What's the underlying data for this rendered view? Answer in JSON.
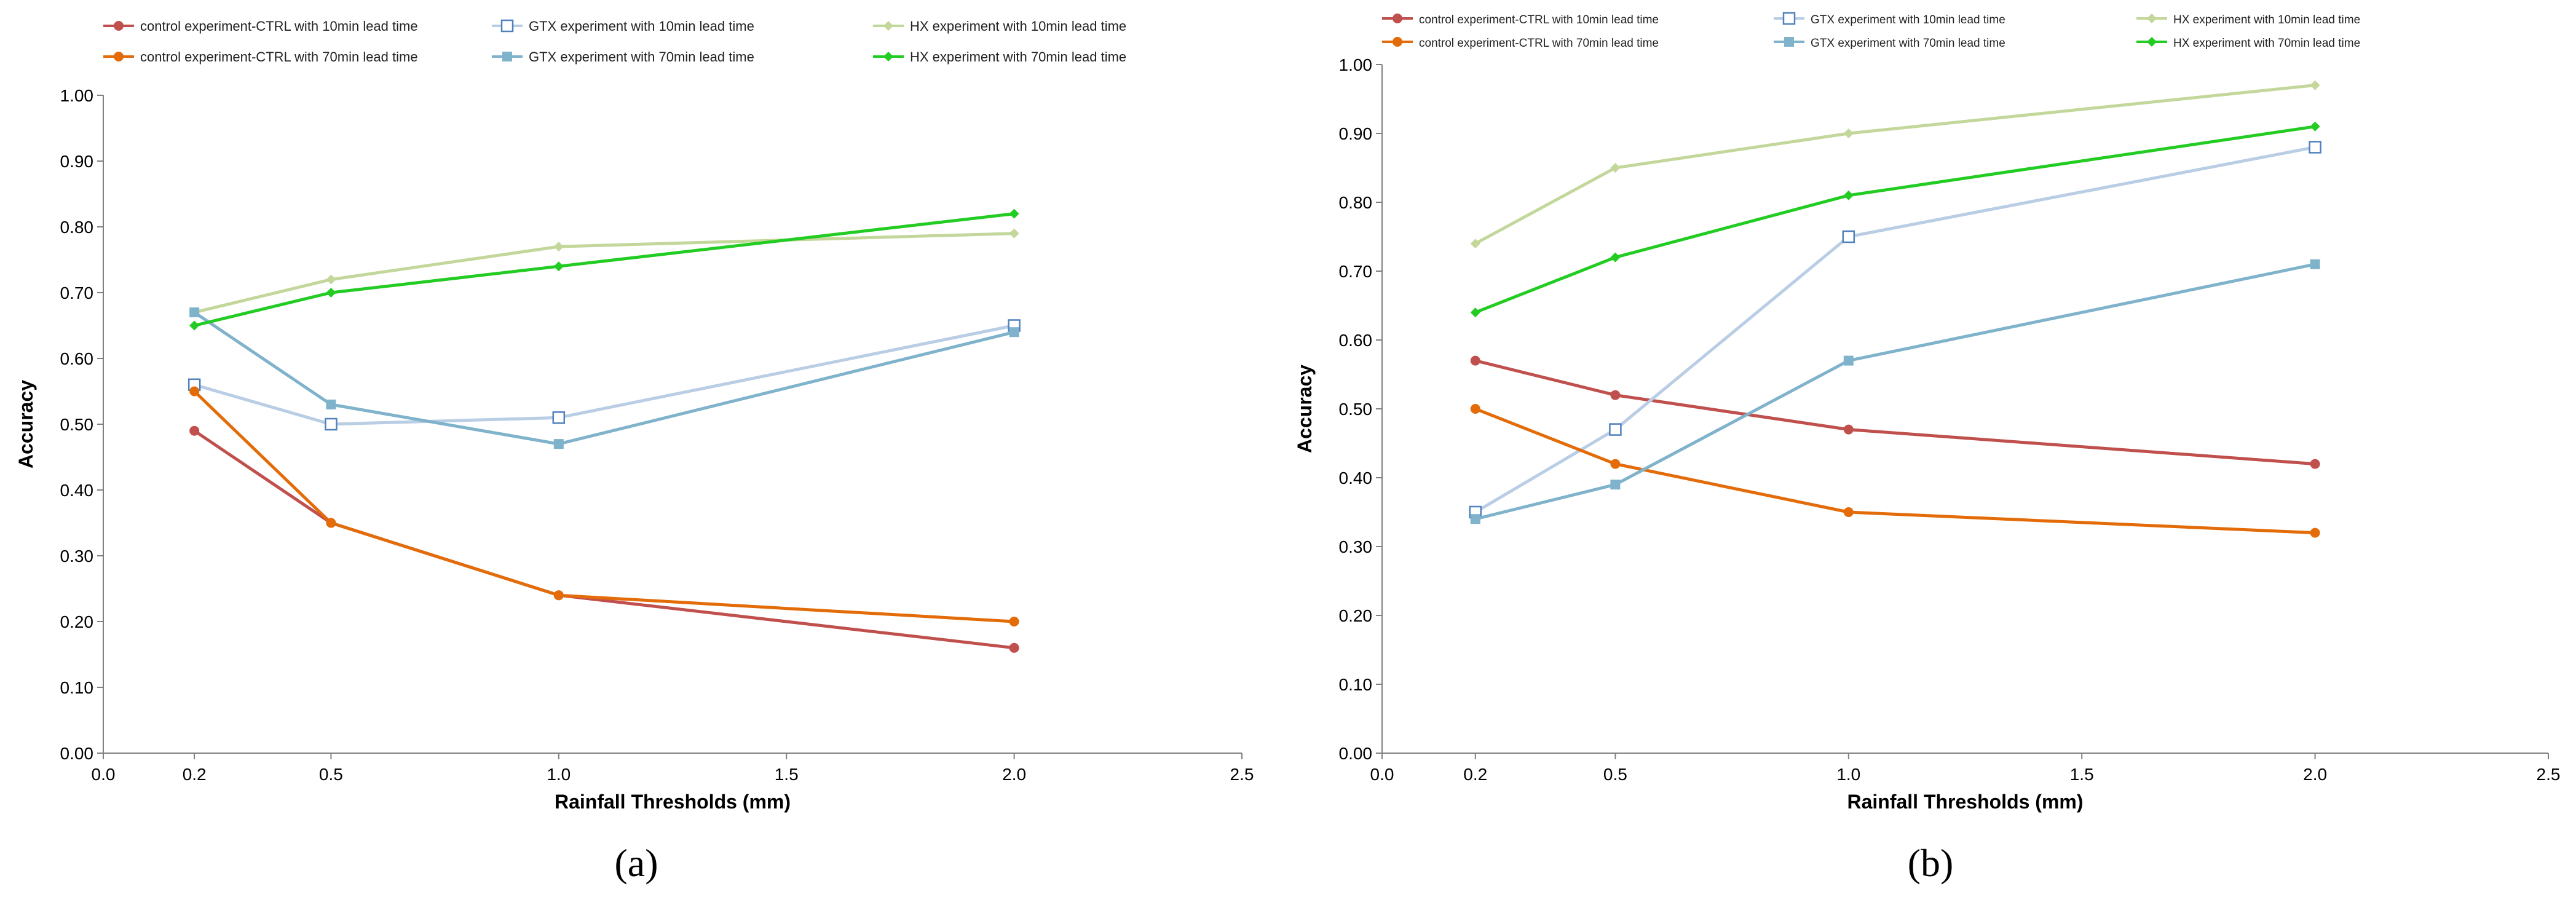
{
  "chart_data": [
    {
      "type": "line",
      "panel": "(a)",
      "xlabel": "Rainfall Thresholds (mm)",
      "ylabel": "Accuracy",
      "xlim": [
        0,
        2.5
      ],
      "ylim": [
        0,
        1.0
      ],
      "x_ticks": [
        "0.0",
        "0.2",
        "0.5",
        "1.0",
        "1.5",
        "2.0",
        "2.5"
      ],
      "y_ticks": [
        "0.00",
        "0.10",
        "0.20",
        "0.30",
        "0.40",
        "0.50",
        "0.60",
        "0.70",
        "0.80",
        "0.90",
        "1.00"
      ],
      "x": [
        0.2,
        0.5,
        1.0,
        2.0
      ],
      "series": [
        {
          "name": "control experiment-CTRL with 10min lead time",
          "color": "#c0504d",
          "marker": "circle",
          "values": [
            0.49,
            0.35,
            0.24,
            0.16
          ]
        },
        {
          "name": "GTX experiment with 10min lead time",
          "color": "#b9cde5",
          "marker": "square-open",
          "values": [
            0.56,
            0.5,
            0.51,
            0.65
          ]
        },
        {
          "name": "HX experiment with 10min lead time",
          "color": "#c4d79b",
          "marker": "diamond",
          "values": [
            0.67,
            0.72,
            0.77,
            0.79
          ]
        },
        {
          "name": "control experiment-CTRL with 70min lead time",
          "color": "#e36c09",
          "marker": "circle",
          "values": [
            0.55,
            0.35,
            0.24,
            0.2
          ]
        },
        {
          "name": "GTX experiment with 70min lead time",
          "color": "#7fb2cb",
          "marker": "square",
          "values": [
            0.67,
            0.53,
            0.47,
            0.64
          ]
        },
        {
          "name": "HX experiment with 70min lead time",
          "color": "#22cc22",
          "marker": "diamond",
          "values": [
            0.65,
            0.7,
            0.74,
            0.82
          ]
        }
      ]
    },
    {
      "type": "line",
      "panel": "(b)",
      "xlabel": "Rainfall Thresholds (mm)",
      "ylabel": "Accuracy",
      "xlim": [
        0,
        2.5
      ],
      "ylim": [
        0,
        1.0
      ],
      "x_ticks": [
        "0.0",
        "0.2",
        "0.5",
        "1.0",
        "1.5",
        "2.0",
        "2.5"
      ],
      "y_ticks": [
        "0.00",
        "0.10",
        "0.20",
        "0.30",
        "0.40",
        "0.50",
        "0.60",
        "0.70",
        "0.80",
        "0.90",
        "1.00"
      ],
      "x": [
        0.2,
        0.5,
        1.0,
        2.0
      ],
      "series": [
        {
          "name": "control experiment-CTRL with 10min lead time",
          "color": "#c0504d",
          "marker": "circle",
          "values": [
            0.57,
            0.52,
            0.47,
            0.42
          ]
        },
        {
          "name": "GTX experiment with 10min lead time",
          "color": "#b9cde5",
          "marker": "square-open",
          "values": [
            0.35,
            0.47,
            0.75,
            0.88
          ]
        },
        {
          "name": "HX experiment with 10min lead time",
          "color": "#c4d79b",
          "marker": "diamond",
          "values": [
            0.74,
            0.85,
            0.9,
            0.97
          ]
        },
        {
          "name": "control experiment-CTRL with 70min lead time",
          "color": "#e36c09",
          "marker": "circle",
          "values": [
            0.5,
            0.42,
            0.35,
            0.32
          ]
        },
        {
          "name": "GTX experiment with 70min lead time",
          "color": "#7fb2cb",
          "marker": "square",
          "values": [
            0.34,
            0.39,
            0.57,
            0.71
          ]
        },
        {
          "name": "HX experiment with 70min lead time",
          "color": "#22cc22",
          "marker": "diamond",
          "values": [
            0.64,
            0.72,
            0.81,
            0.91
          ]
        }
      ]
    }
  ]
}
